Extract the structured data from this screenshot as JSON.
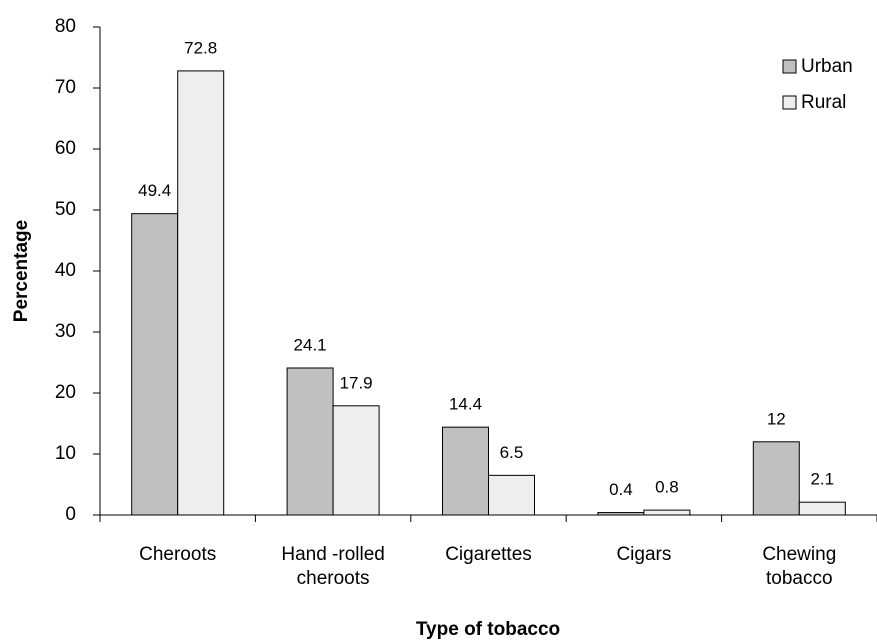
{
  "chart_data": {
    "type": "bar",
    "x_label": "Type of tobacco",
    "y_label": "Percentage",
    "categories": [
      "Cheroots",
      "Hand -rolled cheroots",
      "Cigarettes",
      "Cigars",
      "Chewing tobacco"
    ],
    "series": [
      {
        "name": "Urban",
        "color": "#c0c0c0",
        "values": [
          49.4,
          24.1,
          14.4,
          0.4,
          12
        ]
      },
      {
        "name": "Rural",
        "color": "#eeeeee",
        "values": [
          72.8,
          17.9,
          6.5,
          0.8,
          2.1
        ]
      }
    ],
    "ylim": [
      0,
      80
    ],
    "yticks": [
      0,
      10,
      20,
      30,
      40,
      50,
      60,
      70,
      80
    ],
    "legend": "top-right"
  }
}
